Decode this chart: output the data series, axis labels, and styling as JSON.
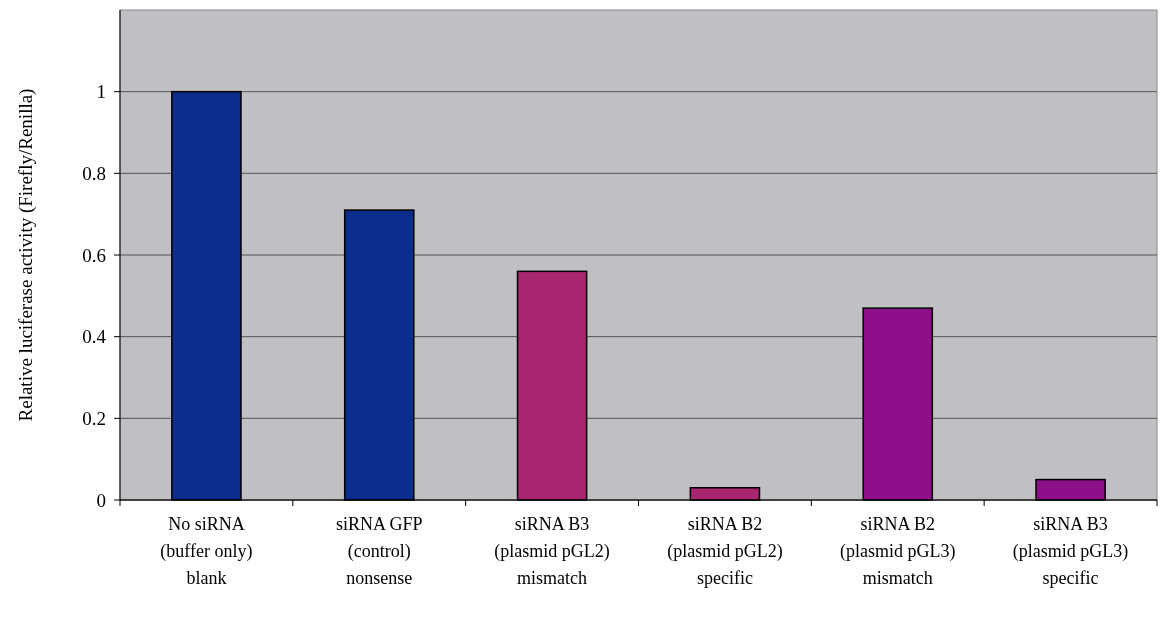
{
  "chart_data": {
    "type": "bar",
    "ylabel": "Relative luciferase activity (Firefly/Renilla)",
    "categories": [
      "No siRNA\n(buffer only)\nblank",
      "siRNA GFP\n(control)\nnonsense",
      "siRNA B3\n(plasmid pGL2)\nmismatch",
      "siRNA B2\n(plasmid pGL2)\nspecific",
      "siRNA B2\n(plasmid pGL3)\nmismatch",
      "siRNA B3\n(plasmid pGL3)\nspecific"
    ],
    "values": [
      1.0,
      0.71,
      0.56,
      0.03,
      0.47,
      0.05
    ],
    "colors": [
      "#0c2d8c",
      "#0c2d8c",
      "#a8256f",
      "#a8256f",
      "#8e0f8a",
      "#8e0f8a"
    ],
    "ylim": [
      0,
      1.2
    ],
    "yticks": [
      0,
      0.2,
      0.4,
      0.6,
      0.8,
      1
    ],
    "grid": "y"
  }
}
